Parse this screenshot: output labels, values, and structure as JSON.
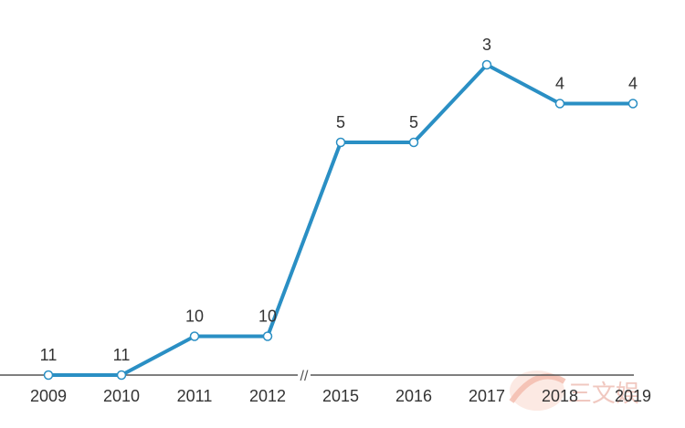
{
  "chart_data": {
    "type": "line",
    "title": "",
    "xlabel": "",
    "ylabel": "",
    "categories": [
      "2009",
      "2010",
      "2011",
      "2012",
      "2015",
      "2016",
      "2017",
      "2018",
      "2019"
    ],
    "series": [
      {
        "values": [
          11,
          11,
          10,
          10,
          5,
          5,
          3,
          4,
          4
        ]
      }
    ],
    "data_labels": [
      "11",
      "11",
      "10",
      "10",
      "5",
      "5",
      "3",
      "4",
      "4"
    ],
    "y_axis_inverted": true,
    "axis_break_between": [
      "2012",
      "2015"
    ],
    "axis_break_symbol": "//",
    "grid": false,
    "legend": "none",
    "line_color": "#2a8fc4",
    "marker_fill": "#ffffff",
    "axis_color": "#555555"
  },
  "watermark": {
    "text": "三文娱",
    "color": "#f0c8c0"
  }
}
